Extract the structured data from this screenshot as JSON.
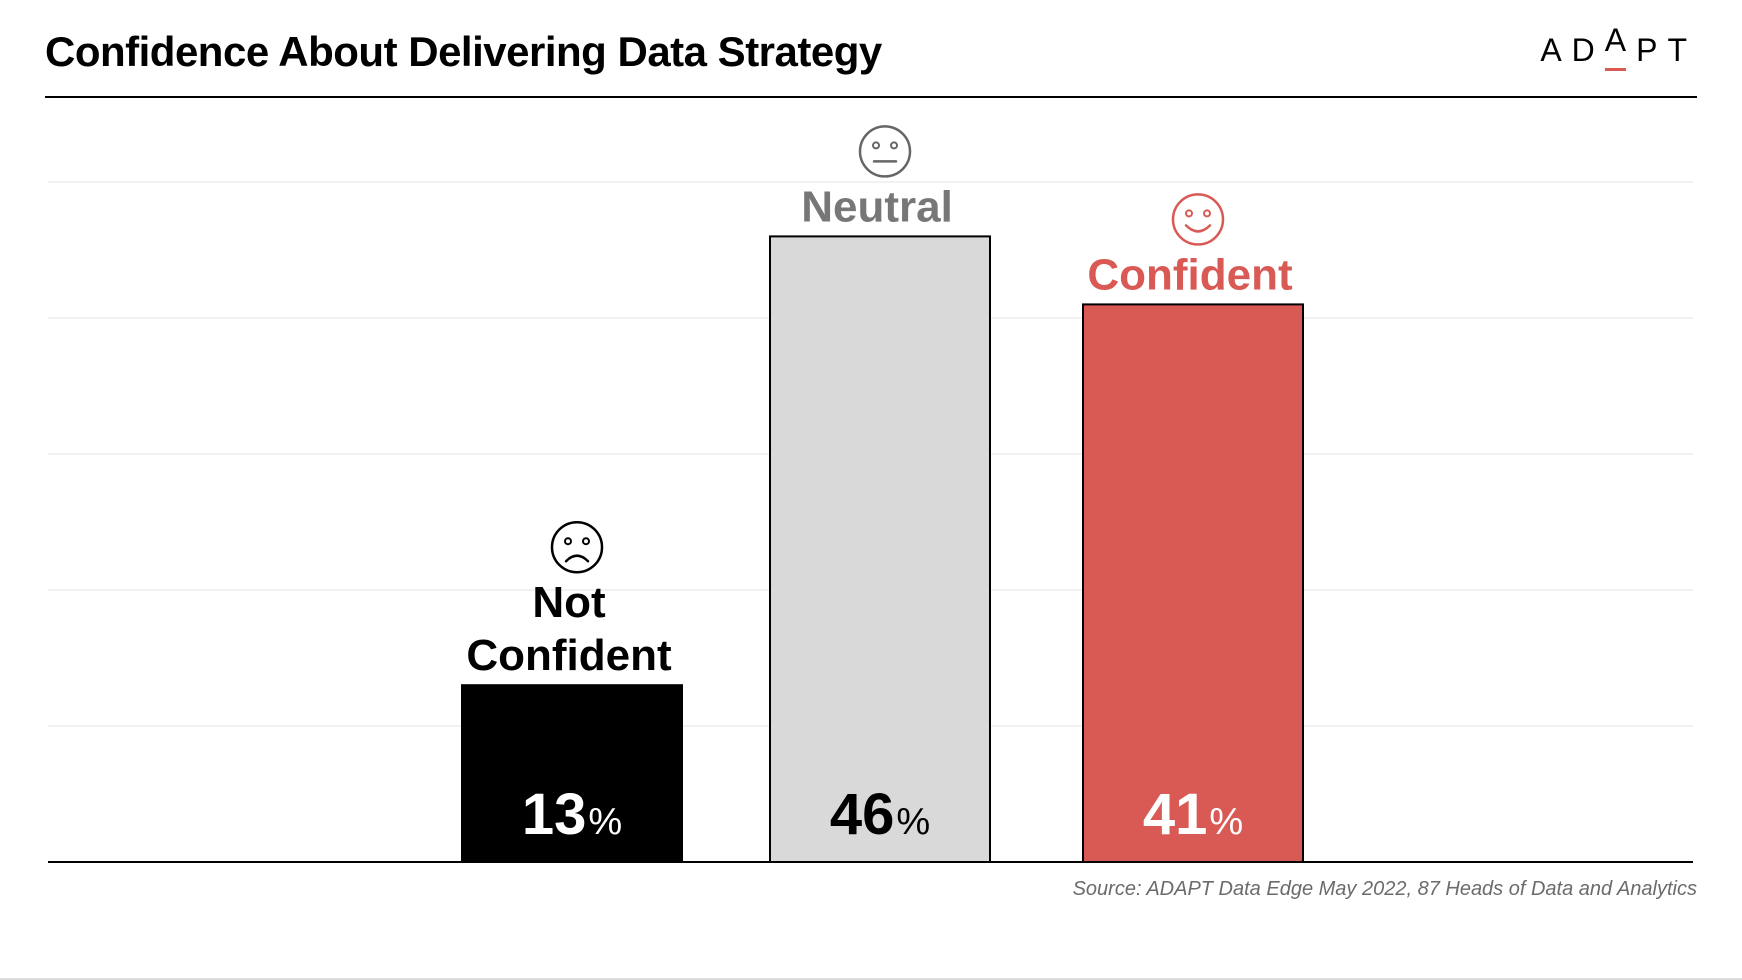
{
  "header": {
    "title": "Confidence About Delivering Data Strategy",
    "logo": {
      "prefix": "AD",
      "accent": "A",
      "suffix": "PT"
    }
  },
  "source": "Source: ADAPT Data Edge May 2022, 87 Heads of Data and Analytics",
  "colors": {
    "accent": "#d95a55",
    "not_confident": "#000000",
    "neutral_bar": "#d9d9d9",
    "neutral_label": "#777777",
    "confident": "#d95a55",
    "gridline": "#e6e6e6",
    "axis": "#000000"
  },
  "chart_data": {
    "type": "bar",
    "title": "Confidence About Delivering Data Strategy",
    "categories": [
      "Not Confident",
      "Neutral",
      "Confident"
    ],
    "label_lines": [
      [
        "Not",
        "Confident"
      ],
      [
        "Neutral"
      ],
      [
        "Confident"
      ]
    ],
    "values": [
      13,
      46,
      41
    ],
    "value_labels": [
      "13",
      "46",
      "41"
    ],
    "unit": "%",
    "icons": [
      "sad-face-icon",
      "neutral-face-icon",
      "happy-face-icon"
    ],
    "ylim": [
      0,
      50
    ],
    "grid": true,
    "legend": "none",
    "xlabel": "",
    "ylabel": ""
  }
}
